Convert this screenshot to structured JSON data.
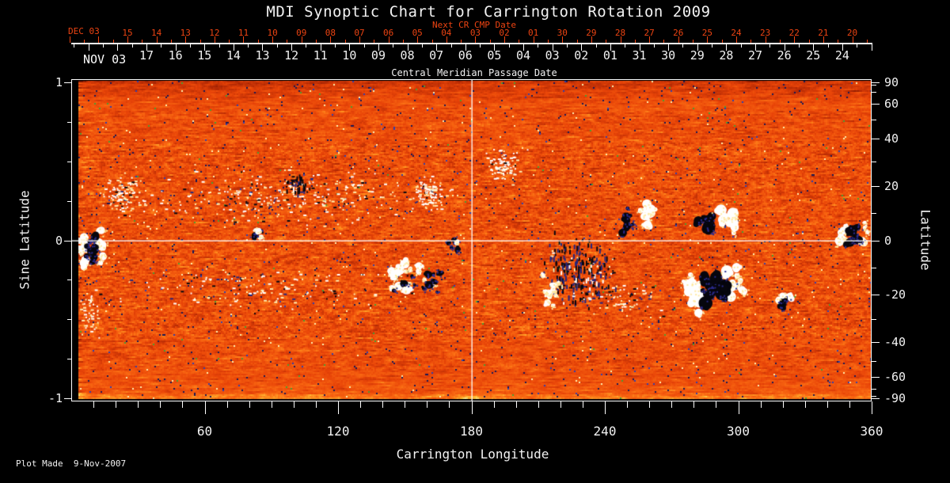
{
  "title": "MDI Synoptic Chart for Carrington Rotation 2009",
  "colors": {
    "background": "#000000",
    "foreground": "#ffffff",
    "next_cr_accent": "#ee4412"
  },
  "next_cr_axis": {
    "title": "Next CR CMP Date",
    "month_label": "DEC 03",
    "day_labels": [
      "15",
      "14",
      "13",
      "12",
      "11",
      "10",
      "09",
      "08",
      "07",
      "06",
      "05",
      "04",
      "03",
      "02",
      "01",
      "30",
      "29",
      "28",
      "27",
      "26",
      "25",
      "24",
      "23",
      "22",
      "21",
      "20"
    ]
  },
  "cmp_axis": {
    "title": "Central Meridian Passage Date",
    "month_label": "NOV 03",
    "day_labels": [
      "17",
      "16",
      "15",
      "14",
      "13",
      "12",
      "11",
      "10",
      "09",
      "08",
      "07",
      "06",
      "05",
      "04",
      "03",
      "02",
      "01",
      "31",
      "30",
      "29",
      "28",
      "27",
      "26",
      "25",
      "24"
    ]
  },
  "left_axis": {
    "title": "Sine Latitude",
    "labels": [
      "1",
      "0",
      "-1"
    ],
    "label_values": [
      1,
      0,
      -1
    ],
    "minor_tick_values": [
      0.75,
      0.5,
      0.25,
      -0.25,
      -0.5,
      -0.75
    ]
  },
  "right_axis": {
    "title": "Latitude",
    "labels": [
      "90",
      "60",
      "40",
      "20",
      "0",
      "-20",
      "-40",
      "-60",
      "-90"
    ],
    "label_values": [
      90,
      60,
      40,
      20,
      0,
      -20,
      -40,
      -60,
      -90
    ],
    "minor_tick_values": [
      80,
      70,
      50,
      30,
      10,
      -10,
      -30,
      -50,
      -70,
      -80
    ]
  },
  "bottom_axis": {
    "title": "Carrington Longitude",
    "labels": [
      "60",
      "120",
      "180",
      "240",
      "300",
      "360"
    ],
    "label_values": [
      60,
      120,
      180,
      240,
      300,
      360
    ],
    "minor_tick_step": 10
  },
  "footer": {
    "note": "Plot Made  9-Nov-2007"
  },
  "chart_data": {
    "type": "heatmap",
    "description": "Full-Carrington-rotation synoptic magnetogram: orange noisy background with white (positive) and dark navy/black (negative) magnetic active regions; white crosshair at longitude 180 and latitude 0.",
    "x_axis": {
      "label": "Carrington Longitude",
      "range": [
        0,
        360
      ]
    },
    "y_axis": {
      "label": "Sine Latitude",
      "range": [
        -1,
        1
      ],
      "scale": "sine-latitude"
    },
    "crosshair": {
      "longitude": 180,
      "latitude": 0
    },
    "colormap": {
      "stops": [
        [
          0.0,
          [
            110,
            18,
            0
          ]
        ],
        [
          0.2,
          [
            181,
            42,
            4
          ]
        ],
        [
          0.45,
          [
            232,
            68,
            8
          ]
        ],
        [
          0.7,
          [
            249,
            104,
            18
          ]
        ],
        [
          0.85,
          [
            255,
            151,
            34
          ]
        ],
        [
          0.95,
          [
            255,
            200,
            62
          ]
        ],
        [
          1.0,
          [
            255,
            233,
            140
          ]
        ]
      ],
      "negative_speck": [
        24,
        24,
        86
      ],
      "positive_speck": [
        255,
        240,
        175
      ]
    },
    "active_regions": [
      {
        "id": "ar-left-limb",
        "lon": 9,
        "slat": -0.05,
        "wlon": 15,
        "hslat": 0.38,
        "style": "complex",
        "n": 22,
        "rmax": 7
      },
      {
        "id": "flecks-nw-left",
        "lon": 23,
        "slat": 0.28,
        "wlon": 22,
        "hslat": 0.3,
        "style": "specks",
        "n": 110,
        "white": 0.9
      },
      {
        "id": "flecks-s-left",
        "lon": 8,
        "slat": -0.45,
        "wlon": 12,
        "hslat": 0.35,
        "style": "specks",
        "n": 50,
        "white": 0.95
      },
      {
        "id": "north-plage-band",
        "lon": 95,
        "slat": 0.28,
        "wlon": 165,
        "hslat": 0.4,
        "style": "specks",
        "n": 300,
        "white": 0.8
      },
      {
        "id": "south-band-west",
        "lon": 90,
        "slat": -0.3,
        "wlon": 150,
        "hslat": 0.35,
        "style": "specks",
        "n": 150,
        "white": 0.65
      },
      {
        "id": "spot-lon84",
        "lon": 84,
        "slat": 0.05,
        "wlon": 8,
        "hslat": 0.1,
        "style": "blobs",
        "n": 7,
        "rmax": 4,
        "white": 0.65
      },
      {
        "id": "dark-lon102-n",
        "lon": 102,
        "slat": 0.36,
        "wlon": 11,
        "hslat": 0.14,
        "style": "specks",
        "n": 50,
        "white": 0.05,
        "vdash": true
      },
      {
        "id": "plage-lon160-n",
        "lon": 160,
        "slat": 0.3,
        "wlon": 18,
        "hslat": 0.25,
        "style": "specks",
        "n": 110,
        "white": 0.92
      },
      {
        "id": "ar-lon150-s",
        "lon": 149,
        "slat": -0.24,
        "wlon": 20,
        "hslat": 0.3,
        "style": "blobs",
        "n": 20,
        "rmax": 6,
        "white": 0.8
      },
      {
        "id": "ar-lon161-s-dark",
        "lon": 161,
        "slat": -0.28,
        "wlon": 13,
        "hslat": 0.28,
        "style": "blobs",
        "n": 11,
        "rmax": 5,
        "white": 0.15
      },
      {
        "id": "pair-lon172",
        "lon": 172,
        "slat": -0.03,
        "wlon": 9,
        "hslat": 0.12,
        "style": "blobs",
        "n": 8,
        "rmax": 4,
        "white": 0.6
      },
      {
        "id": "flecks-lon194-n",
        "lon": 194,
        "slat": 0.48,
        "wlon": 22,
        "hslat": 0.26,
        "style": "specks",
        "n": 90,
        "white": 0.9
      },
      {
        "id": "dark-cloud-lon228",
        "lon": 228,
        "slat": -0.18,
        "wlon": 38,
        "hslat": 0.55,
        "style": "specks",
        "n": 260,
        "white": 0.15,
        "vdash": true
      },
      {
        "id": "plage-lon216-s",
        "lon": 216,
        "slat": -0.3,
        "wlon": 11,
        "hslat": 0.35,
        "style": "blobs",
        "n": 13,
        "rmax": 5,
        "white": 0.95
      },
      {
        "id": "ar-lon255-n",
        "lon": 255,
        "slat": 0.15,
        "wlon": 18,
        "hslat": 0.28,
        "style": "bipolar",
        "n": 15,
        "rmax": 7
      },
      {
        "id": "ar-lon291-n",
        "lon": 291,
        "slat": 0.12,
        "wlon": 23,
        "hslat": 0.26,
        "style": "bipolar",
        "n": 17,
        "rmax": 8
      },
      {
        "id": "ar-lon289-s",
        "lon": 289,
        "slat": -0.3,
        "wlon": 32,
        "hslat": 0.42,
        "style": "complex",
        "n": 34,
        "rmax": 9
      },
      {
        "id": "scatter-south-mid",
        "lon": 250,
        "slat": -0.35,
        "wlon": 60,
        "hslat": 0.3,
        "style": "specks",
        "n": 80,
        "white": 0.5
      },
      {
        "id": "pair-lon320-s",
        "lon": 320,
        "slat": -0.38,
        "wlon": 11,
        "hslat": 0.15,
        "style": "blobs",
        "n": 9,
        "rmax": 5,
        "white": 0.6
      },
      {
        "id": "ar-lon352",
        "lon": 352,
        "slat": 0.04,
        "wlon": 16,
        "hslat": 0.3,
        "style": "complex",
        "n": 16,
        "rmax": 7
      }
    ]
  }
}
